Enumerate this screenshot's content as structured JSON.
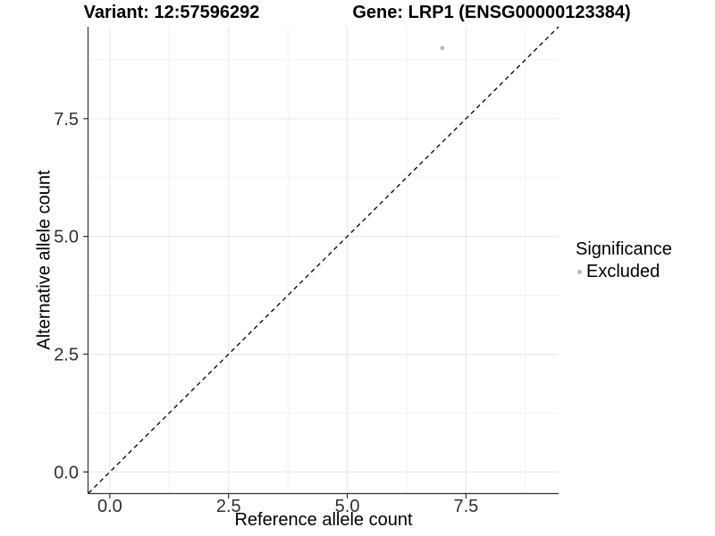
{
  "chart_data": {
    "type": "scatter",
    "title_left": "Variant: 12:57596292",
    "title_right": "Gene: LRP1 (ENSG00000123384)",
    "xlabel": "Reference allele count",
    "ylabel": "Alternative allele count",
    "xlim": [
      -0.45,
      9.45
    ],
    "ylim": [
      -0.45,
      9.45
    ],
    "x_ticks": [
      0,
      2.5,
      5,
      7.5
    ],
    "x_tick_labels": [
      "0.0",
      "2.5",
      "5.0",
      "7.5"
    ],
    "y_ticks": [
      0,
      2.5,
      5,
      7.5
    ],
    "y_tick_labels": [
      "0.0",
      "2.5",
      "5.0",
      "7.5"
    ],
    "minor_ticks": [
      1.25,
      3.75,
      6.25,
      8.75
    ],
    "grid": true,
    "points": [
      {
        "x": 7,
        "y": 9,
        "series": "Excluded"
      }
    ],
    "reference_line": {
      "type": "identity",
      "equation": "y = x",
      "from": [
        -0.45,
        -0.45
      ],
      "to": [
        9.45,
        9.45
      ],
      "style": "dashed",
      "color": "#000000"
    },
    "legend": {
      "title": "Significance",
      "position": "right",
      "items": [
        {
          "label": "Excluded",
          "color": "#bdbdbd"
        }
      ]
    },
    "colors": {
      "point": "#bdbdbd",
      "grid_major": "#e7e7e7",
      "grid_minor": "#f2f2f2",
      "axis_line": "#333333",
      "tick_text": "#303030",
      "title_text": "#000000"
    }
  }
}
